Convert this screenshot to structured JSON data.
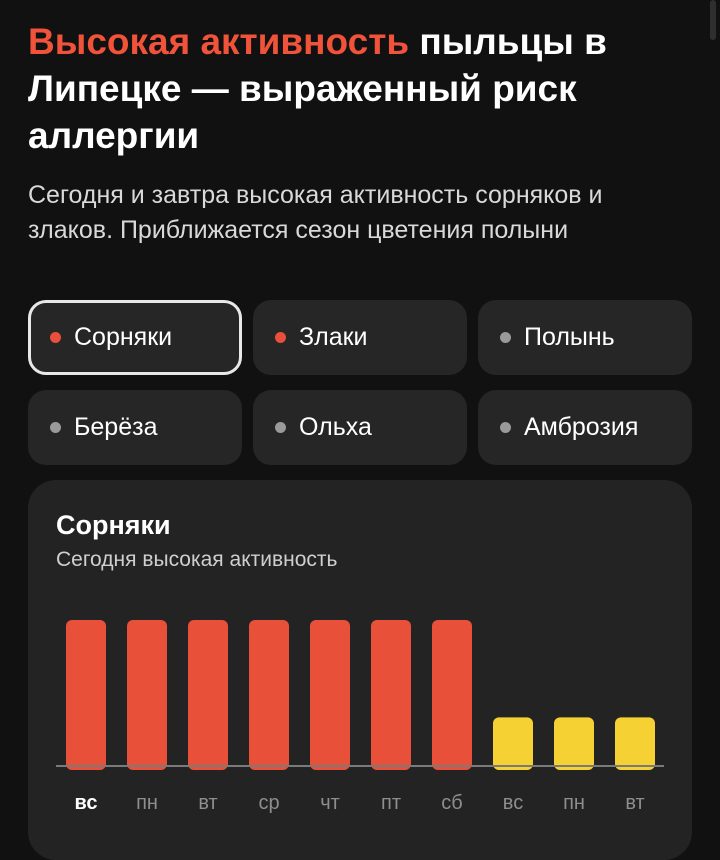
{
  "headline": {
    "accent": "Высокая активность",
    "rest": " пыльцы в Липецке — выраженный риск аллергии"
  },
  "subtitle": "Сегодня и завтра высокая активность сорняков и злаков. Приближается сезон цветения полыни",
  "chips": [
    {
      "label": "Сорняки",
      "status": "high",
      "selected": true
    },
    {
      "label": "Злаки",
      "status": "high",
      "selected": false
    },
    {
      "label": "Полынь",
      "status": "low",
      "selected": false
    },
    {
      "label": "Берёза",
      "status": "low",
      "selected": false
    },
    {
      "label": "Ольха",
      "status": "low",
      "selected": false
    },
    {
      "label": "Амброзия",
      "status": "low",
      "selected": false
    }
  ],
  "colors": {
    "accent": "#f0533a",
    "high": "#e8503a",
    "medium": "#f5d133",
    "low": "#9a9a9a",
    "background": "#111111",
    "card": "#232323"
  },
  "card": {
    "title": "Сорняки",
    "subtitle": "Сегодня высокая активность"
  },
  "chart_data": {
    "type": "bar",
    "categories": [
      "вс",
      "пн",
      "вт",
      "ср",
      "чт",
      "пт",
      "сб",
      "вс",
      "пн",
      "вт"
    ],
    "values": [
      3,
      3,
      3,
      3,
      3,
      3,
      3,
      1,
      1,
      1
    ],
    "levels": [
      "high",
      "high",
      "high",
      "high",
      "high",
      "high",
      "high",
      "medium",
      "medium",
      "medium"
    ],
    "current_index": 0,
    "ylim": [
      0,
      3
    ],
    "grid": false
  }
}
